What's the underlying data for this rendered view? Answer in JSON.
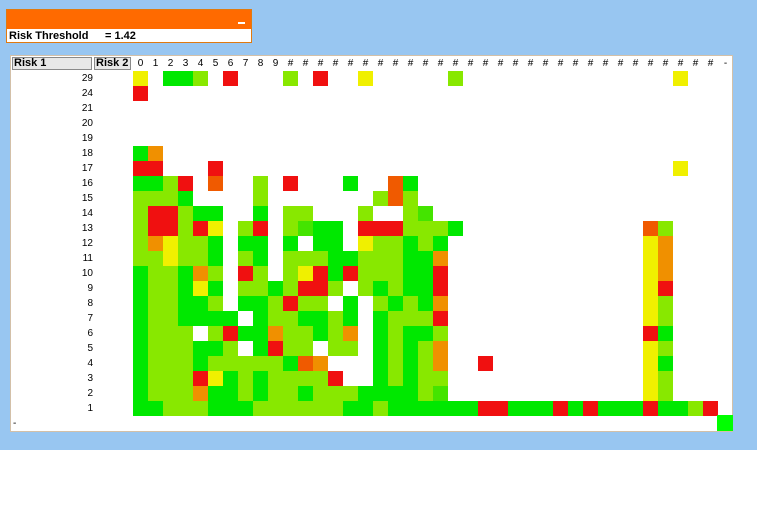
{
  "threshold_panel": {
    "label": "Risk Threshold",
    "value": "= 1.42",
    "header_color": "#ff6a00",
    "minimize_icon": "minimize-icon"
  },
  "grid": {
    "risk1_label": "Risk 1",
    "risk2_label": "Risk 2",
    "footer_label": "-",
    "column_labels": [
      "0",
      "1",
      "2",
      "3",
      "4",
      "5",
      "6",
      "7",
      "8",
      "9",
      "#",
      "#",
      "#",
      "#",
      "#",
      "#",
      "#",
      "#",
      "#",
      "#",
      "#",
      "#",
      "#",
      "#",
      "#",
      "#",
      "#",
      "#",
      "#",
      "#",
      "#",
      "#",
      "#",
      "#",
      "#",
      "#",
      "#",
      "#",
      "#",
      "-"
    ],
    "row_labels": [
      "29",
      "24",
      "21",
      "20",
      "19",
      "18",
      "17",
      "16",
      "15",
      "14",
      "13",
      "12",
      "11",
      "10",
      "9",
      "8",
      "7",
      "6",
      "5",
      "4",
      "3",
      "2",
      "1"
    ],
    "legend_colors": {
      "G": "#00e800",
      "L": "#44e400",
      "M": "#88e800",
      "Y": "#c8f000",
      "W": "#f0f000",
      "O": "#f09000",
      "T": "#f05a00",
      "R": "#f01010"
    },
    "cells": [
      "W.GGM.R...M.R..W.....M..............W......R.R...WMG",
      "R...................................................",
      "....................................................",
      "....................................................",
      "....................................................",
      "GO..................................................",
      "RR...R..............................W..............G",
      "GGMR.T..M.R...G..TG................................G",
      "MMMG....M.......MTM...............................WM",
      "MRRMGG..G.MM...M..ML...............................G",
      "MRRMRW.MR.MLGG.RRRMMMG............TM.............M.G",
      "MOWMMG.GG.G.GG.WMMGMG.............WO.............M.G",
      "MMWMMG.MG.MMMGGMMMGGO.............WO...........MWM.G",
      "GMMGOM.RM.MWRGRMMMGGR.............WO.........MMMWMG",
      "GMMGWG.MMGMRRM.MGMGGR.............WR..........MW.MG",
      "GMMGGM.GGMRMM.G.MGMGO.............WM..........MW.MG",
      "GMMGGGG.GMMGGMG.GMMMR.............WM..........MRMMG",
      "GMMM.MRGGOMMGMO.GMGGM.............RG..........MW.MG",
      "GMMMGGM.GRMM.MM.GMGMO.............WM..........MW.MG",
      "GMMMGMMMMMGTO...GMGMO..R..........WG...........MMMG",
      "GMMMRWGMGMMMMR..GMGMM.............WM.........G.GM.MG",
      "GMMMOGGMGMMGMMMGGGGML.............WM...........MGMG",
      "GGMMMGGGMMMMMMGGMGGGGGGRRGGGRGRGGGRGGMRG.GGGGG"
    ]
  }
}
